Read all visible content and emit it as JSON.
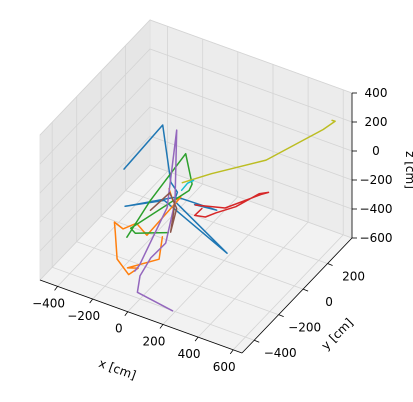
{
  "chart_data": {
    "type": "line",
    "projection": "3d",
    "grid": true,
    "xlabel": "x [cm]",
    "ylabel": "y [cm]",
    "zlabel": "z [cm]",
    "xlim": [
      -500,
      650
    ],
    "ylim": [
      -500,
      400
    ],
    "zlim": [
      -600,
      400
    ],
    "x_ticks": [
      -400,
      -200,
      0,
      200,
      400,
      600
    ],
    "y_ticks": [
      -400,
      -200,
      0,
      200
    ],
    "z_ticks": [
      -600,
      -400,
      -200,
      0,
      200,
      400
    ],
    "x_tick_labels": [
      "−400",
      "−200",
      "0",
      "200",
      "400",
      "600"
    ],
    "y_tick_labels": [
      "−400",
      "−200",
      "0",
      "200"
    ],
    "z_tick_labels": [
      "−600",
      "−400",
      "−200",
      "0",
      "200",
      "400"
    ],
    "series": [
      {
        "color": "#1f77b4",
        "points": [
          [
            -300,
            -100,
            -100
          ],
          [
            -80,
            -100,
            300
          ],
          [
            -20,
            -120,
            -50
          ],
          [
            -10,
            -80,
            -150
          ],
          [
            0,
            -120,
            -170
          ],
          [
            300,
            -120,
            -400
          ],
          [
            -50,
            -130,
            -180
          ],
          [
            -280,
            -120,
            -330
          ],
          [
            -10,
            -110,
            -160
          ],
          [
            30,
            -100,
            -160
          ],
          [
            200,
            -60,
            -200
          ],
          [
            60,
            -40,
            -240
          ]
        ]
      },
      {
        "color": "#ff7f0e",
        "points": [
          [
            -30,
            -120,
            -100
          ],
          [
            -20,
            -100,
            -200
          ],
          [
            30,
            -110,
            -140
          ],
          [
            -100,
            -200,
            -380
          ],
          [
            -180,
            -170,
            -360
          ],
          [
            -250,
            -180,
            -420
          ],
          [
            -320,
            -150,
            -430
          ],
          [
            -280,
            -200,
            -440
          ],
          [
            -200,
            -300,
            -500
          ],
          [
            -100,
            -350,
            -520
          ],
          [
            -80,
            -300,
            -510
          ],
          [
            -120,
            -330,
            -500
          ],
          [
            -10,
            -230,
            -480
          ],
          [
            -40,
            -160,
            -400
          ]
        ]
      },
      {
        "color": "#2ca02c",
        "points": [
          [
            -200,
            -220,
            -420
          ],
          [
            -150,
            -100,
            -250
          ],
          [
            -60,
            60,
            -30
          ],
          [
            -10,
            40,
            -200
          ],
          [
            -20,
            30,
            -240
          ],
          [
            -220,
            -160,
            -420
          ],
          [
            -180,
            -180,
            -420
          ],
          [
            -100,
            -160,
            -400
          ],
          [
            -20,
            -140,
            -380
          ]
        ]
      },
      {
        "color": "#d62728",
        "points": [
          [
            30,
            10,
            -300
          ],
          [
            150,
            80,
            -330
          ],
          [
            240,
            170,
            -300
          ],
          [
            270,
            200,
            -290
          ],
          [
            300,
            220,
            -280
          ],
          [
            260,
            200,
            -290
          ],
          [
            190,
            110,
            -330
          ],
          [
            120,
            50,
            -350
          ],
          [
            80,
            20,
            -370
          ],
          [
            40,
            -10,
            -350
          ],
          [
            60,
            20,
            -320
          ]
        ]
      },
      {
        "color": "#9467bd",
        "points": [
          [
            -100,
            -300,
            -540
          ],
          [
            -80,
            -290,
            -500
          ],
          [
            -20,
            -150,
            -200
          ],
          [
            0,
            -100,
            300
          ],
          [
            -10,
            -100,
            -200
          ],
          [
            0,
            -190,
            -400
          ],
          [
            -50,
            -240,
            -480
          ],
          [
            -70,
            -300,
            -560
          ],
          [
            -50,
            -350,
            -620
          ],
          [
            150,
            -350,
            -660
          ]
        ]
      },
      {
        "color": "#8c564b",
        "points": [
          [
            -80,
            -200,
            -200
          ],
          [
            -40,
            -100,
            -150
          ],
          [
            0,
            -100,
            -240
          ],
          [
            0,
            -150,
            -360
          ],
          [
            -10,
            -110,
            -260
          ],
          [
            -20,
            -90,
            -210
          ]
        ]
      },
      {
        "color": "#bcbd22",
        "points": [
          [
            -10,
            -40,
            -120
          ],
          [
            100,
            40,
            -80
          ],
          [
            300,
            200,
            -40
          ],
          [
            500,
            380,
            100
          ],
          [
            540,
            420,
            140
          ],
          [
            530,
            410,
            150
          ]
        ]
      },
      {
        "color": "#17becf",
        "points": [
          [
            0,
            -60,
            -150
          ],
          [
            20,
            -40,
            -110
          ],
          [
            40,
            -20,
            -100
          ]
        ]
      }
    ]
  }
}
